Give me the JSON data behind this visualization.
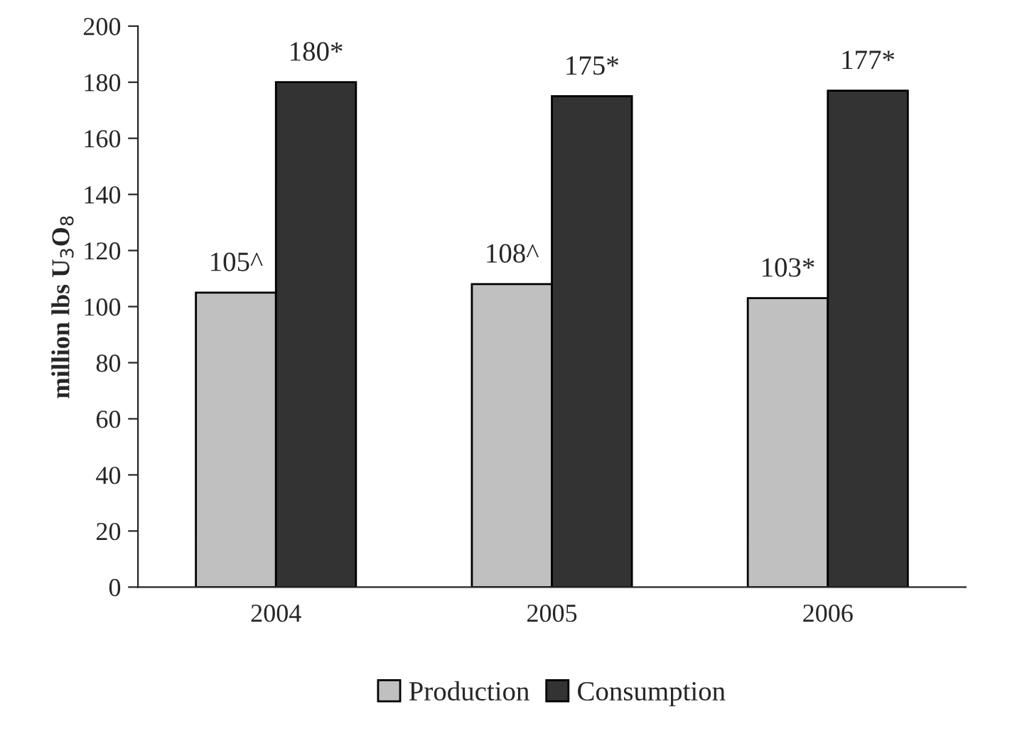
{
  "chart_data": {
    "type": "bar",
    "ylabel": "million lbs U$_{3}$O$_{8}$",
    "categories": [
      "2004",
      "2005",
      "2006"
    ],
    "series": [
      {
        "name": "Production",
        "color": "#c0c0c0",
        "values": [
          105,
          108,
          103
        ],
        "value_labels": [
          "105^",
          "108^",
          "103*"
        ]
      },
      {
        "name": "Consumption",
        "color": "#333333",
        "values": [
          180,
          175,
          177
        ],
        "value_labels": [
          "180*",
          "175*",
          "177*"
        ]
      }
    ],
    "ylim": [
      0,
      200
    ],
    "yticks": [
      0,
      20,
      40,
      60,
      80,
      100,
      120,
      140,
      160,
      180,
      200
    ],
    "grid": false,
    "legend": "bottom"
  }
}
